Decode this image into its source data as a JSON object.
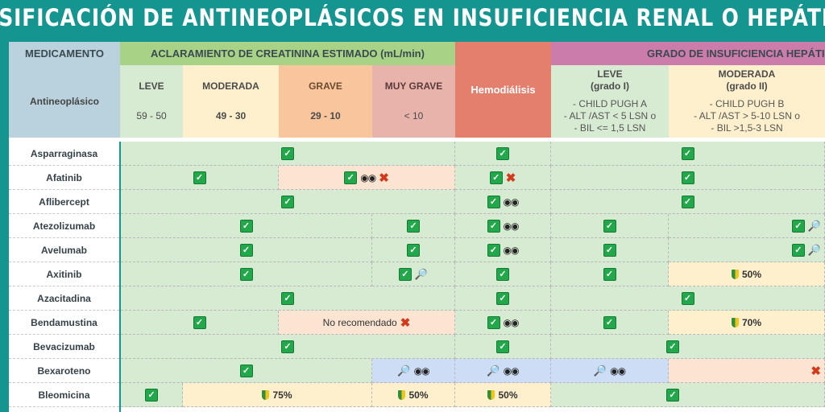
{
  "title": "DOSIFICACIÓN DE ANTINEOPLÁSICOS EN INSUFICIENCIA RENAL O HEPÁTICA",
  "colors": {
    "background": "#15958f",
    "green": "#d7ead2",
    "light_yellow": "#fff0cd",
    "peach": "#fbe4d1",
    "blue": "#cdddf5",
    "med_header": "#bad2de",
    "renal_header": "#a8d386",
    "hemo_header": "#e47f6e",
    "hepatic_header": "#cc7cab"
  },
  "headers": {
    "medicamento": "MEDICAMENTO",
    "renal_group": "ACLARAMIENTO DE CREATININA ESTIMADO (mL/min)",
    "hepatic_group": "GRADO DE INSUFICIENCIA HEPÁTICA",
    "antineoplasico": "Antineoplásico",
    "hemodialisis": "Hemodiálisis",
    "leve": {
      "label": "LEVE",
      "range": "59 - 50"
    },
    "moderada": {
      "label": "MODERADA",
      "range": "49 - 30"
    },
    "grave": {
      "label": "GRAVE",
      "range": "29 - 10"
    },
    "muy_grave": {
      "label": "MUY GRAVE",
      "range": "< 10"
    },
    "hep_leve": {
      "label": "LEVE",
      "grade": "(grado I)",
      "desc1": "- CHILD PUGH A",
      "desc2": "- ALT /AST < 5 LSN o",
      "desc3": "- BIL <= 1,5 LSN"
    },
    "hep_moderada": {
      "label": "MODERADA",
      "grade": "(grado II)",
      "desc1": "- CHILD PUGH B",
      "desc2": "- ALT /AST > 5-10 LSN o",
      "desc3": "- BIL >1,5-3 LSN"
    }
  },
  "rows": [
    {
      "drug": "Asparraginasa",
      "cells": [
        {
          "span": [
            0,
            3
          ],
          "bg": "green",
          "items": [
            "check"
          ]
        },
        {
          "span": [
            4,
            4
          ],
          "bg": "green",
          "items": [
            "check"
          ]
        },
        {
          "span": [
            5,
            6
          ],
          "bg": "green",
          "items": [
            "check"
          ]
        }
      ]
    },
    {
      "drug": "Afatinib",
      "cells": [
        {
          "span": [
            0,
            1
          ],
          "bg": "green",
          "items": [
            "check"
          ]
        },
        {
          "span": [
            2,
            3
          ],
          "bg": "peach",
          "items": [
            "check",
            "eyes",
            "x"
          ]
        },
        {
          "span": [
            4,
            4
          ],
          "bg": "green",
          "items": [
            "check",
            "x"
          ]
        },
        {
          "span": [
            5,
            6
          ],
          "bg": "green",
          "items": [
            "check"
          ]
        }
      ]
    },
    {
      "drug": "Aflibercept",
      "cells": [
        {
          "span": [
            0,
            3
          ],
          "bg": "green",
          "items": [
            "check"
          ]
        },
        {
          "span": [
            4,
            4
          ],
          "bg": "green",
          "items": [
            "check",
            "eyes"
          ]
        },
        {
          "span": [
            5,
            6
          ],
          "bg": "green",
          "items": [
            "check"
          ]
        }
      ]
    },
    {
      "drug": "Atezolizumab",
      "cells": [
        {
          "span": [
            0,
            2
          ],
          "bg": "green",
          "items": [
            "check"
          ]
        },
        {
          "span": [
            3,
            3
          ],
          "bg": "green",
          "items": [
            "check"
          ]
        },
        {
          "span": [
            4,
            4
          ],
          "bg": "green",
          "items": [
            "check",
            "eyes"
          ]
        },
        {
          "span": [
            5,
            5
          ],
          "bg": "green",
          "items": [
            "check"
          ]
        },
        {
          "span": [
            6,
            6
          ],
          "bg": "green",
          "items": [
            "check",
            "mag"
          ],
          "align": "right"
        }
      ]
    },
    {
      "drug": "Avelumab",
      "cells": [
        {
          "span": [
            0,
            2
          ],
          "bg": "green",
          "items": [
            "check"
          ]
        },
        {
          "span": [
            3,
            3
          ],
          "bg": "green",
          "items": [
            "check"
          ]
        },
        {
          "span": [
            4,
            4
          ],
          "bg": "green",
          "items": [
            "check",
            "eyes"
          ]
        },
        {
          "span": [
            5,
            5
          ],
          "bg": "green",
          "items": [
            "check"
          ]
        },
        {
          "span": [
            6,
            6
          ],
          "bg": "green",
          "items": [
            "check",
            "mag"
          ],
          "align": "right"
        }
      ]
    },
    {
      "drug": "Axitinib",
      "cells": [
        {
          "span": [
            0,
            2
          ],
          "bg": "green",
          "items": [
            "check"
          ]
        },
        {
          "span": [
            3,
            3
          ],
          "bg": "green",
          "items": [
            "check",
            "mag"
          ]
        },
        {
          "span": [
            4,
            4
          ],
          "bg": "green",
          "items": [
            "check"
          ]
        },
        {
          "span": [
            5,
            5
          ],
          "bg": "green",
          "items": [
            "check"
          ]
        },
        {
          "span": [
            6,
            6
          ],
          "bg": "light_yellow",
          "items": [
            "shield"
          ],
          "text": "50%",
          "bold": true
        }
      ]
    },
    {
      "drug": "Azacitadina",
      "cells": [
        {
          "span": [
            0,
            3
          ],
          "bg": "green",
          "items": [
            "check"
          ]
        },
        {
          "span": [
            4,
            4
          ],
          "bg": "green",
          "items": [
            "check"
          ]
        },
        {
          "span": [
            5,
            6
          ],
          "bg": "green",
          "items": [
            "check"
          ]
        }
      ]
    },
    {
      "drug": "Bendamustina",
      "cells": [
        {
          "span": [
            0,
            1
          ],
          "bg": "green",
          "items": [
            "check"
          ]
        },
        {
          "span": [
            2,
            3
          ],
          "bg": "peach",
          "text": "No recomendado",
          "items_after": [
            "x"
          ]
        },
        {
          "span": [
            4,
            4
          ],
          "bg": "green",
          "items": [
            "check",
            "eyes"
          ]
        },
        {
          "span": [
            5,
            5
          ],
          "bg": "green",
          "items": [
            "check"
          ]
        },
        {
          "span": [
            6,
            6
          ],
          "bg": "light_yellow",
          "items": [
            "shield"
          ],
          "text": "70%",
          "bold": true
        }
      ]
    },
    {
      "drug": "Bevacizumab",
      "cells": [
        {
          "span": [
            0,
            3
          ],
          "bg": "green",
          "items": [
            "check"
          ]
        },
        {
          "span": [
            4,
            4
          ],
          "bg": "green",
          "items": [
            "check"
          ]
        },
        {
          "span": [
            5,
            6
          ],
          "bg": "green",
          "items": [
            "check"
          ],
          "offset": 37
        }
      ]
    },
    {
      "drug": "Bexaroteno",
      "cells": [
        {
          "span": [
            0,
            2
          ],
          "bg": "green",
          "items": [
            "check"
          ]
        },
        {
          "span": [
            3,
            3
          ],
          "bg": "blue",
          "items": [
            "mag",
            "eyes"
          ]
        },
        {
          "span": [
            4,
            4
          ],
          "bg": "blue",
          "items": [
            "mag",
            "eyes"
          ]
        },
        {
          "span": [
            5,
            5
          ],
          "bg": "blue",
          "items": [
            "mag",
            "eyes"
          ]
        },
        {
          "span": [
            6,
            6
          ],
          "bg": "peach",
          "items": [
            "x"
          ],
          "align": "right"
        }
      ]
    },
    {
      "drug": "Bleomicina",
      "cells": [
        {
          "span": [
            0,
            0
          ],
          "bg": "green",
          "items": [
            "check"
          ]
        },
        {
          "span": [
            1,
            2
          ],
          "bg": "light_yellow",
          "items": [
            "shield"
          ],
          "text": "75%",
          "bold": true
        },
        {
          "span": [
            3,
            3
          ],
          "bg": "light_yellow",
          "items": [
            "shield"
          ],
          "text": "50%",
          "bold": true
        },
        {
          "span": [
            4,
            4
          ],
          "bg": "light_yellow",
          "items": [
            "shield"
          ],
          "text": "50%",
          "bold": true
        },
        {
          "span": [
            5,
            6
          ],
          "bg": "green",
          "items": [
            "check"
          ],
          "offset": 37
        }
      ]
    }
  ]
}
